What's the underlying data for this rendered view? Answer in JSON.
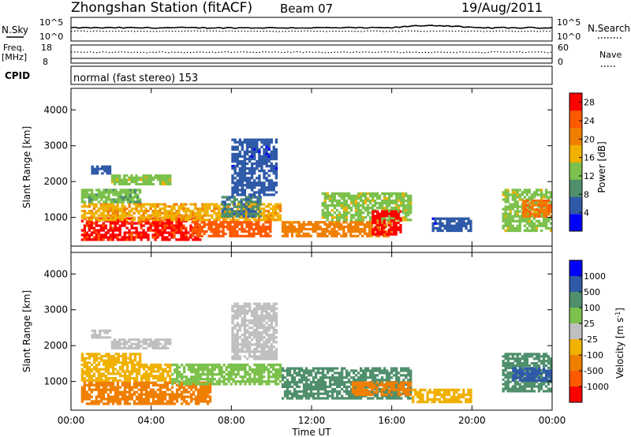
{
  "header": {
    "station_title": "Zhongshan Station (fitACF)",
    "beam_label": "Beam 07",
    "date_label": "19/Aug/2011"
  },
  "top_panels": {
    "nsky_label": "N.Sky",
    "nsky_tick_top": "10^5",
    "nsky_tick_bottom": "10^0",
    "nsearch_label": "N.Search",
    "nsearch_tick_top": "10^5",
    "nsearch_tick_bottom": "10^0",
    "freq_label": "Freq.",
    "freq_unit": "[MHz]",
    "freq_tick_top": "18",
    "freq_tick_bottom": "8",
    "nave_label": "Nave",
    "nave_tick_top": "60",
    "nave_tick_bottom": "0",
    "cpid_label": "CPID",
    "cpid_value": "normal (fast stereo) 153"
  },
  "colors": {
    "power": [
      "#0000ff",
      "#2f5aa8",
      "#4f8f6c",
      "#7cc14c",
      "#f0b100",
      "#f07f00",
      "#ff5a00",
      "#ff0000"
    ],
    "velocity": [
      "#0000ff",
      "#2f5aa8",
      "#4f8f6c",
      "#7cc14c",
      "#c0c0c0",
      "#f0b100",
      "#f07f00",
      "#ff5a00",
      "#ff0000"
    ]
  },
  "chart_data": [
    {
      "type": "heatmap",
      "title": "",
      "xlabel": "",
      "ylabel": "Slant Range [km]",
      "x_ticks": [
        "00:00",
        "04:00",
        "08:00",
        "12:00",
        "16:00",
        "20:00",
        "00:00"
      ],
      "y_ticks": [
        "1000",
        "2000",
        "3000",
        "4000"
      ],
      "xlim_hours": [
        0,
        24
      ],
      "ylim_km": [
        200,
        4600
      ],
      "colorbar": {
        "label": "Power [dB]",
        "ticks": [
          "4",
          "8",
          "12",
          "16",
          "20",
          "24",
          "28"
        ],
        "range": [
          0,
          30
        ]
      },
      "patches": [
        {
          "x0": 0.5,
          "x1": 6.5,
          "y0": 350,
          "y1": 1000,
          "v": 27
        },
        {
          "x0": 0.5,
          "x1": 10.5,
          "y0": 900,
          "y1": 1400,
          "v": 18
        },
        {
          "x0": 0.5,
          "x1": 3.5,
          "y0": 1400,
          "y1": 1800,
          "v": 12
        },
        {
          "x0": 1.0,
          "x1": 2.0,
          "y0": 2200,
          "y1": 2450,
          "v": 6
        },
        {
          "x0": 2.0,
          "x1": 5.0,
          "y0": 1900,
          "y1": 2200,
          "v": 14
        },
        {
          "x0": 6.0,
          "x1": 10.0,
          "y0": 450,
          "y1": 900,
          "v": 24
        },
        {
          "x0": 8.0,
          "x1": 10.3,
          "y0": 1600,
          "y1": 3200,
          "v": 5
        },
        {
          "x0": 7.5,
          "x1": 9.5,
          "y0": 1000,
          "y1": 1600,
          "v": 8
        },
        {
          "x0": 10.5,
          "x1": 16.0,
          "y0": 450,
          "y1": 900,
          "v": 20
        },
        {
          "x0": 12.5,
          "x1": 17.0,
          "y0": 900,
          "y1": 1700,
          "v": 14
        },
        {
          "x0": 15.0,
          "x1": 16.5,
          "y0": 500,
          "y1": 1200,
          "v": 28
        },
        {
          "x0": 18.0,
          "x1": 20.0,
          "y0": 600,
          "y1": 1000,
          "v": 5
        },
        {
          "x0": 21.5,
          "x1": 24.0,
          "y0": 600,
          "y1": 1800,
          "v": 14
        },
        {
          "x0": 22.5,
          "x1": 24.0,
          "y0": 1000,
          "y1": 1500,
          "v": 22
        }
      ]
    },
    {
      "type": "heatmap",
      "title": "",
      "xlabel": "Time UT",
      "ylabel": "Slant Range [km]",
      "x_ticks": [
        "00:00",
        "04:00",
        "08:00",
        "12:00",
        "16:00",
        "20:00",
        "00:00"
      ],
      "y_ticks": [
        "1000",
        "2000",
        "3000",
        "4000"
      ],
      "xlim_hours": [
        0,
        24
      ],
      "ylim_km": [
        200,
        4600
      ],
      "colorbar": {
        "label": "Velocity [m s^-1]",
        "ticks": [
          "1000",
          "500",
          "100",
          "25",
          "-25",
          "-100",
          "-500",
          "-1000"
        ]
      },
      "patches": [
        {
          "x0": 0.5,
          "x1": 7.0,
          "y0": 350,
          "y1": 1000,
          "v": -120
        },
        {
          "x0": 0.5,
          "x1": 5.0,
          "y0": 1000,
          "y1": 1500,
          "v": -80
        },
        {
          "x0": 0.5,
          "x1": 3.5,
          "y0": 1500,
          "y1": 1800,
          "v": -30
        },
        {
          "x0": 1.0,
          "x1": 2.0,
          "y0": 2200,
          "y1": 2450,
          "v": 0
        },
        {
          "x0": 2.0,
          "x1": 5.0,
          "y0": 1900,
          "y1": 2200,
          "v": 0
        },
        {
          "x0": 5.0,
          "x1": 10.5,
          "y0": 900,
          "y1": 1500,
          "v": 60
        },
        {
          "x0": 8.0,
          "x1": 10.3,
          "y0": 1600,
          "y1": 3200,
          "v": 0
        },
        {
          "x0": 10.5,
          "x1": 17.0,
          "y0": 500,
          "y1": 1400,
          "v": 120
        },
        {
          "x0": 14.0,
          "x1": 17.0,
          "y0": 600,
          "y1": 1000,
          "v": -110
        },
        {
          "x0": 17.0,
          "x1": 20.0,
          "y0": 400,
          "y1": 800,
          "v": -60
        },
        {
          "x0": 21.5,
          "x1": 24.0,
          "y0": 700,
          "y1": 1800,
          "v": 150
        },
        {
          "x0": 22.0,
          "x1": 24.0,
          "y0": 1000,
          "y1": 1400,
          "v": 600
        }
      ]
    }
  ]
}
